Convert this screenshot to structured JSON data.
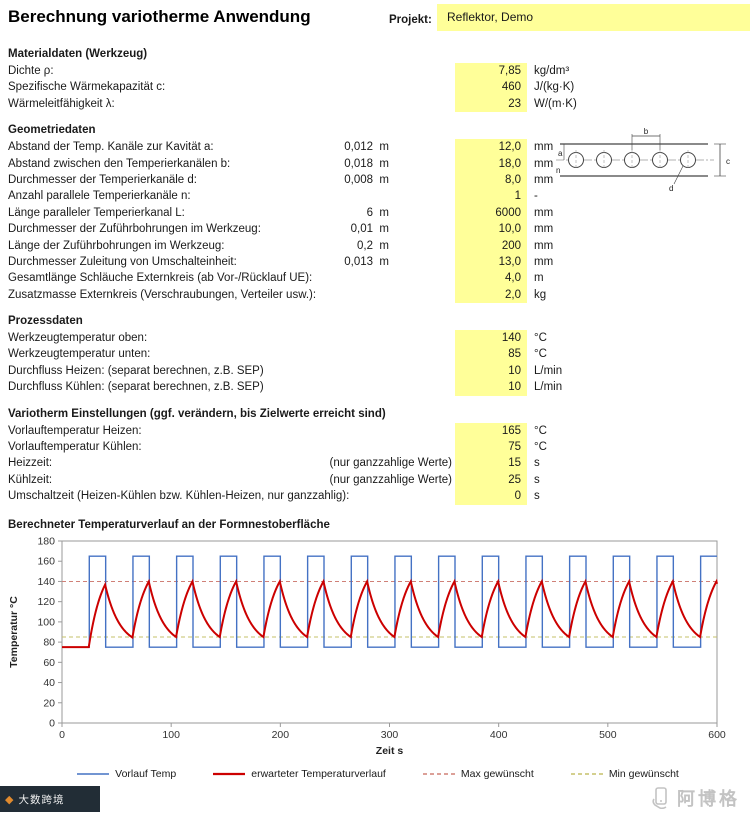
{
  "header": {
    "title": "Berechnung variotherme Anwendung",
    "project_label": "Projekt:",
    "project_value": "Reflektor,  Demo"
  },
  "sections": [
    {
      "title": "Materialdaten (Werkzeug)",
      "rows": [
        {
          "label": "Dichte ρ:",
          "value": "7,85",
          "unit": "kg/dm³"
        },
        {
          "label": "Spezifische Wärmekapazität c:",
          "value": "460",
          "unit": "J/(kg·K)"
        },
        {
          "label": "Wärmeleitfähigkeit λ:",
          "value": "23",
          "unit": "W/(m·K)"
        }
      ]
    },
    {
      "title": "Geometriedaten",
      "rows": [
        {
          "label": "Abstand der Temp. Kanäle zur Kavität a:",
          "mid": "0,012  m",
          "value": "12,0",
          "unit": "mm"
        },
        {
          "label": "Abstand zwischen den Temperierkanälen b:",
          "mid": "0,018  m",
          "value": "18,0",
          "unit": "mm"
        },
        {
          "label": "Durchmesser der Temperierkanäle d:",
          "mid": "0,008  m",
          "value": "8,0",
          "unit": "mm"
        },
        {
          "label": "Anzahl parallele Temperierkanäle n:",
          "value": "1",
          "unit": "-"
        },
        {
          "label": "Länge paralleler Temperierkanal L:",
          "mid": "6  m",
          "value": "6000",
          "unit": "mm"
        },
        {
          "label": "Durchmesser der Zuführbohrungen im Werkzeug:",
          "mid": "0,01  m",
          "value": "10,0",
          "unit": "mm"
        },
        {
          "label": "Länge der Zuführbohrungen im Werkzeug:",
          "mid": "0,2  m",
          "value": "200",
          "unit": "mm"
        },
        {
          "label": "Durchmesser Zuleitung von Umschalteinheit:",
          "mid": "0,013  m",
          "value": "13,0",
          "unit": "mm"
        },
        {
          "label": "Gesamtlänge Schläuche Externkreis (ab Vor-/Rücklauf UE):",
          "value": "4,0",
          "unit": "m"
        },
        {
          "label": "Zusatzmasse Externkreis (Verschraubungen, Verteiler usw.):",
          "value": "2,0",
          "unit": "kg"
        }
      ]
    },
    {
      "title": "Prozessdaten",
      "rows": [
        {
          "label": "Werkzeugtemperatur oben:",
          "value": "140",
          "unit": "°C"
        },
        {
          "label": "Werkzeugtemperatur unten:",
          "value": "85",
          "unit": "°C"
        },
        {
          "label": "Durchfluss Heizen: (separat berechnen, z.B. SEP)",
          "value": "10",
          "unit": "L/min"
        },
        {
          "label": "Durchfluss Kühlen: (separat berechnen, z.B. SEP)",
          "value": "10",
          "unit": "L/min"
        }
      ]
    },
    {
      "title": "Variotherm Einstellungen (ggf. verändern, bis Zielwerte erreicht sind)",
      "rows": [
        {
          "label": "Vorlauftemperatur Heizen:",
          "value": "165",
          "unit": "°C"
        },
        {
          "label": "Vorlauftemperatur Kühlen:",
          "value": "75",
          "unit": "°C"
        },
        {
          "label": "Heizzeit:",
          "note": "(nur ganzzahlige Werte)",
          "value": "15",
          "unit": "s"
        },
        {
          "label": "Kühlzeit:",
          "note": "(nur ganzzahlige Werte)",
          "value": "25",
          "unit": "s"
        },
        {
          "label": "Umschaltzeit (Heizen-Kühlen bzw. Kühlen-Heizen, nur ganzzahlig):",
          "value": "0",
          "unit": "s"
        }
      ]
    }
  ],
  "diagram": {
    "label_a": "a",
    "label_b": "b",
    "label_c": "c",
    "label_d": "d",
    "label_n": "n"
  },
  "chart_title": "Berechneter Temperaturverlauf an der Formnestoberfläche",
  "chart_data": {
    "type": "line",
    "title": "Berechneter Temperaturverlauf an der Formnestoberfläche",
    "xlabel": "Zeit s",
    "ylabel": "Temperatur °C",
    "xlim": [
      0,
      600
    ],
    "ylim": [
      0,
      180
    ],
    "xticks": [
      0,
      100,
      200,
      300,
      400,
      500,
      600
    ],
    "yticks": [
      0,
      20,
      40,
      60,
      80,
      100,
      120,
      140,
      160,
      180
    ],
    "grid": false,
    "legend_position": "bottom",
    "series": [
      {
        "name": "Vorlauf Temp",
        "color": "#4472C4",
        "shape": "square-wave",
        "low": 75,
        "high": 165,
        "first_rise": 25,
        "heat_duration": 15,
        "cool_duration": 25,
        "period": 40
      },
      {
        "name": "erwarteter Temperaturverlauf",
        "color": "#CC0000",
        "shape": "exp-cycles",
        "start": 75,
        "peak": 140,
        "valley": 85,
        "heat_tau": 12.9,
        "cool_tau": 13.4
      },
      {
        "name": "Max gewünscht",
        "color": "#D08077",
        "style": "dashed",
        "value": 140
      },
      {
        "name": "Min gewünscht",
        "color": "#C6C06A",
        "style": "dashed",
        "value": 85
      }
    ]
  },
  "footer": {
    "left_watermark": "大数跨境",
    "left_glyph": "◆",
    "right_watermark": "阿博格"
  }
}
